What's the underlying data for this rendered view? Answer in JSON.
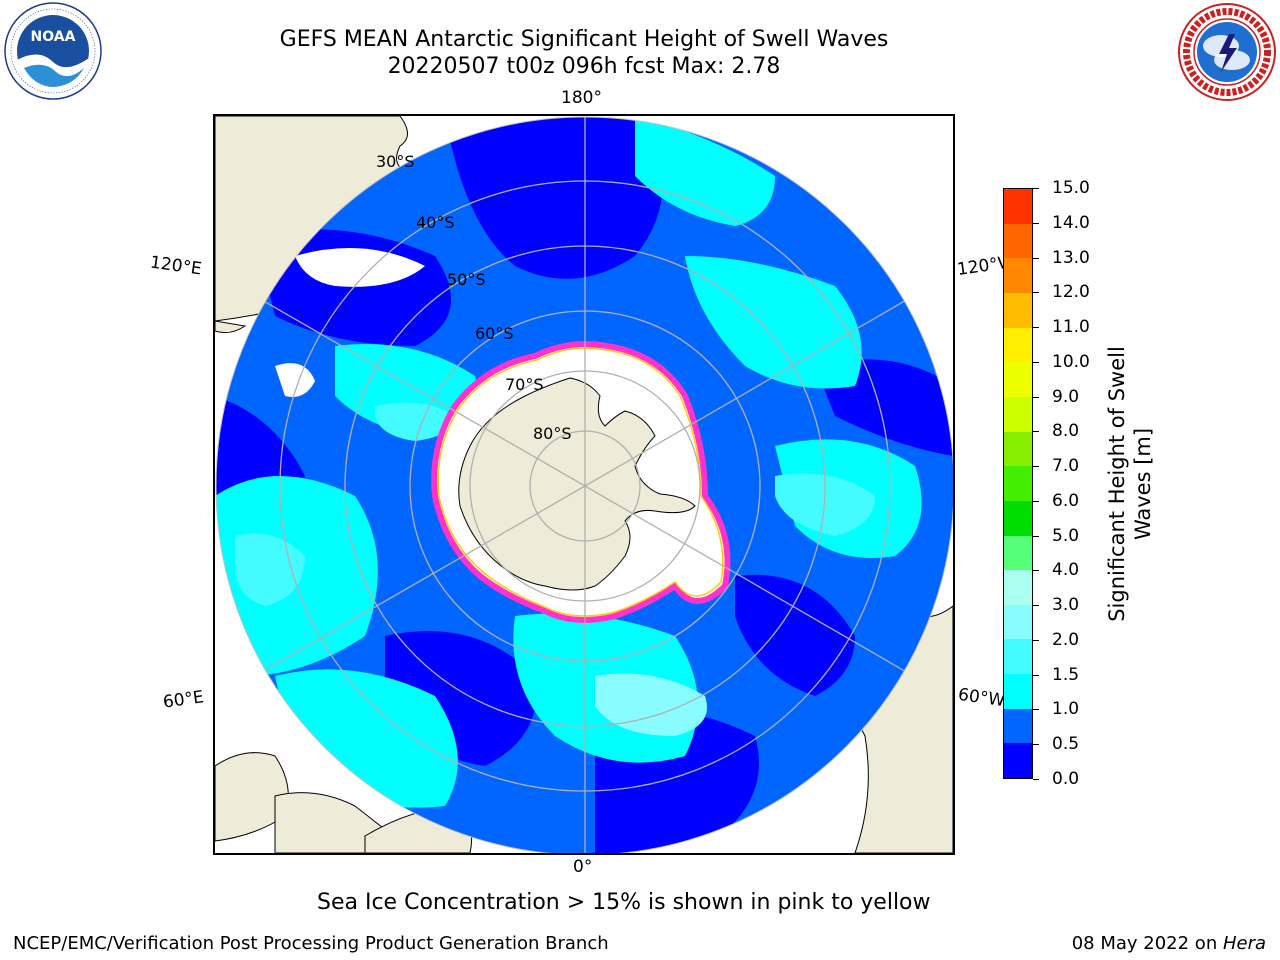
{
  "header": {
    "title_line1": "GEFS MEAN Antarctic Significant Height of Swell Waves",
    "title_line2": "20220507 t00z 096h fcst   Max: 2.78"
  },
  "logos": {
    "left": {
      "icon": "noaa-logo",
      "text": "NOAA",
      "ring_text": "NATIONAL OCEANIC AND ATMOSPHERIC ADMINISTRATION · U.S. DEPARTMENT OF COMMERCE"
    },
    "right": {
      "icon": "nws-logo",
      "ring_text": "NATIONAL WEATHER SERVICE"
    }
  },
  "map": {
    "projection": "south-polar-stereographic",
    "longitude_labels": {
      "top": "180°",
      "left_upper": "120°E",
      "right_upper": "120°W",
      "left_lower": "60°E",
      "right_lower": "60°W",
      "bottom": "0°"
    },
    "latitude_labels": [
      "30°S",
      "40°S",
      "50°S",
      "60°S",
      "70°S",
      "80°S"
    ],
    "colors": {
      "land": "#eeecd9",
      "grid": "#b0b0b0",
      "ice_edge_outer": "#ff33cc",
      "ice_edge_inner": "#ffcc00"
    }
  },
  "colorbar": {
    "title_line1": "Significant Height of Swell",
    "title_line2": "Waves [m]",
    "ticks": [
      "0.0",
      "0.5",
      "1.0",
      "1.5",
      "2.0",
      "3.0",
      "4.0",
      "5.0",
      "6.0",
      "7.0",
      "8.0",
      "9.0",
      "10.0",
      "11.0",
      "12.0",
      "13.0",
      "14.0",
      "15.0"
    ],
    "colors": [
      "#0000ff",
      "#0066ff",
      "#00ffff",
      "#44fbff",
      "#88fcff",
      "#aaffee",
      "#55ff77",
      "#00dd00",
      "#44ee00",
      "#88ee00",
      "#ccff00",
      "#eeff00",
      "#ffee00",
      "#ffbb00",
      "#ff8800",
      "#ff6600",
      "#ff3300"
    ]
  },
  "caption": "Sea Ice Concentration > 15% is shown in pink to yellow",
  "footer": {
    "left": "NCEP/EMC/Verification Post Processing Product Generation Branch",
    "right_date": "08 May 2022 on ",
    "right_host": "Hera"
  }
}
